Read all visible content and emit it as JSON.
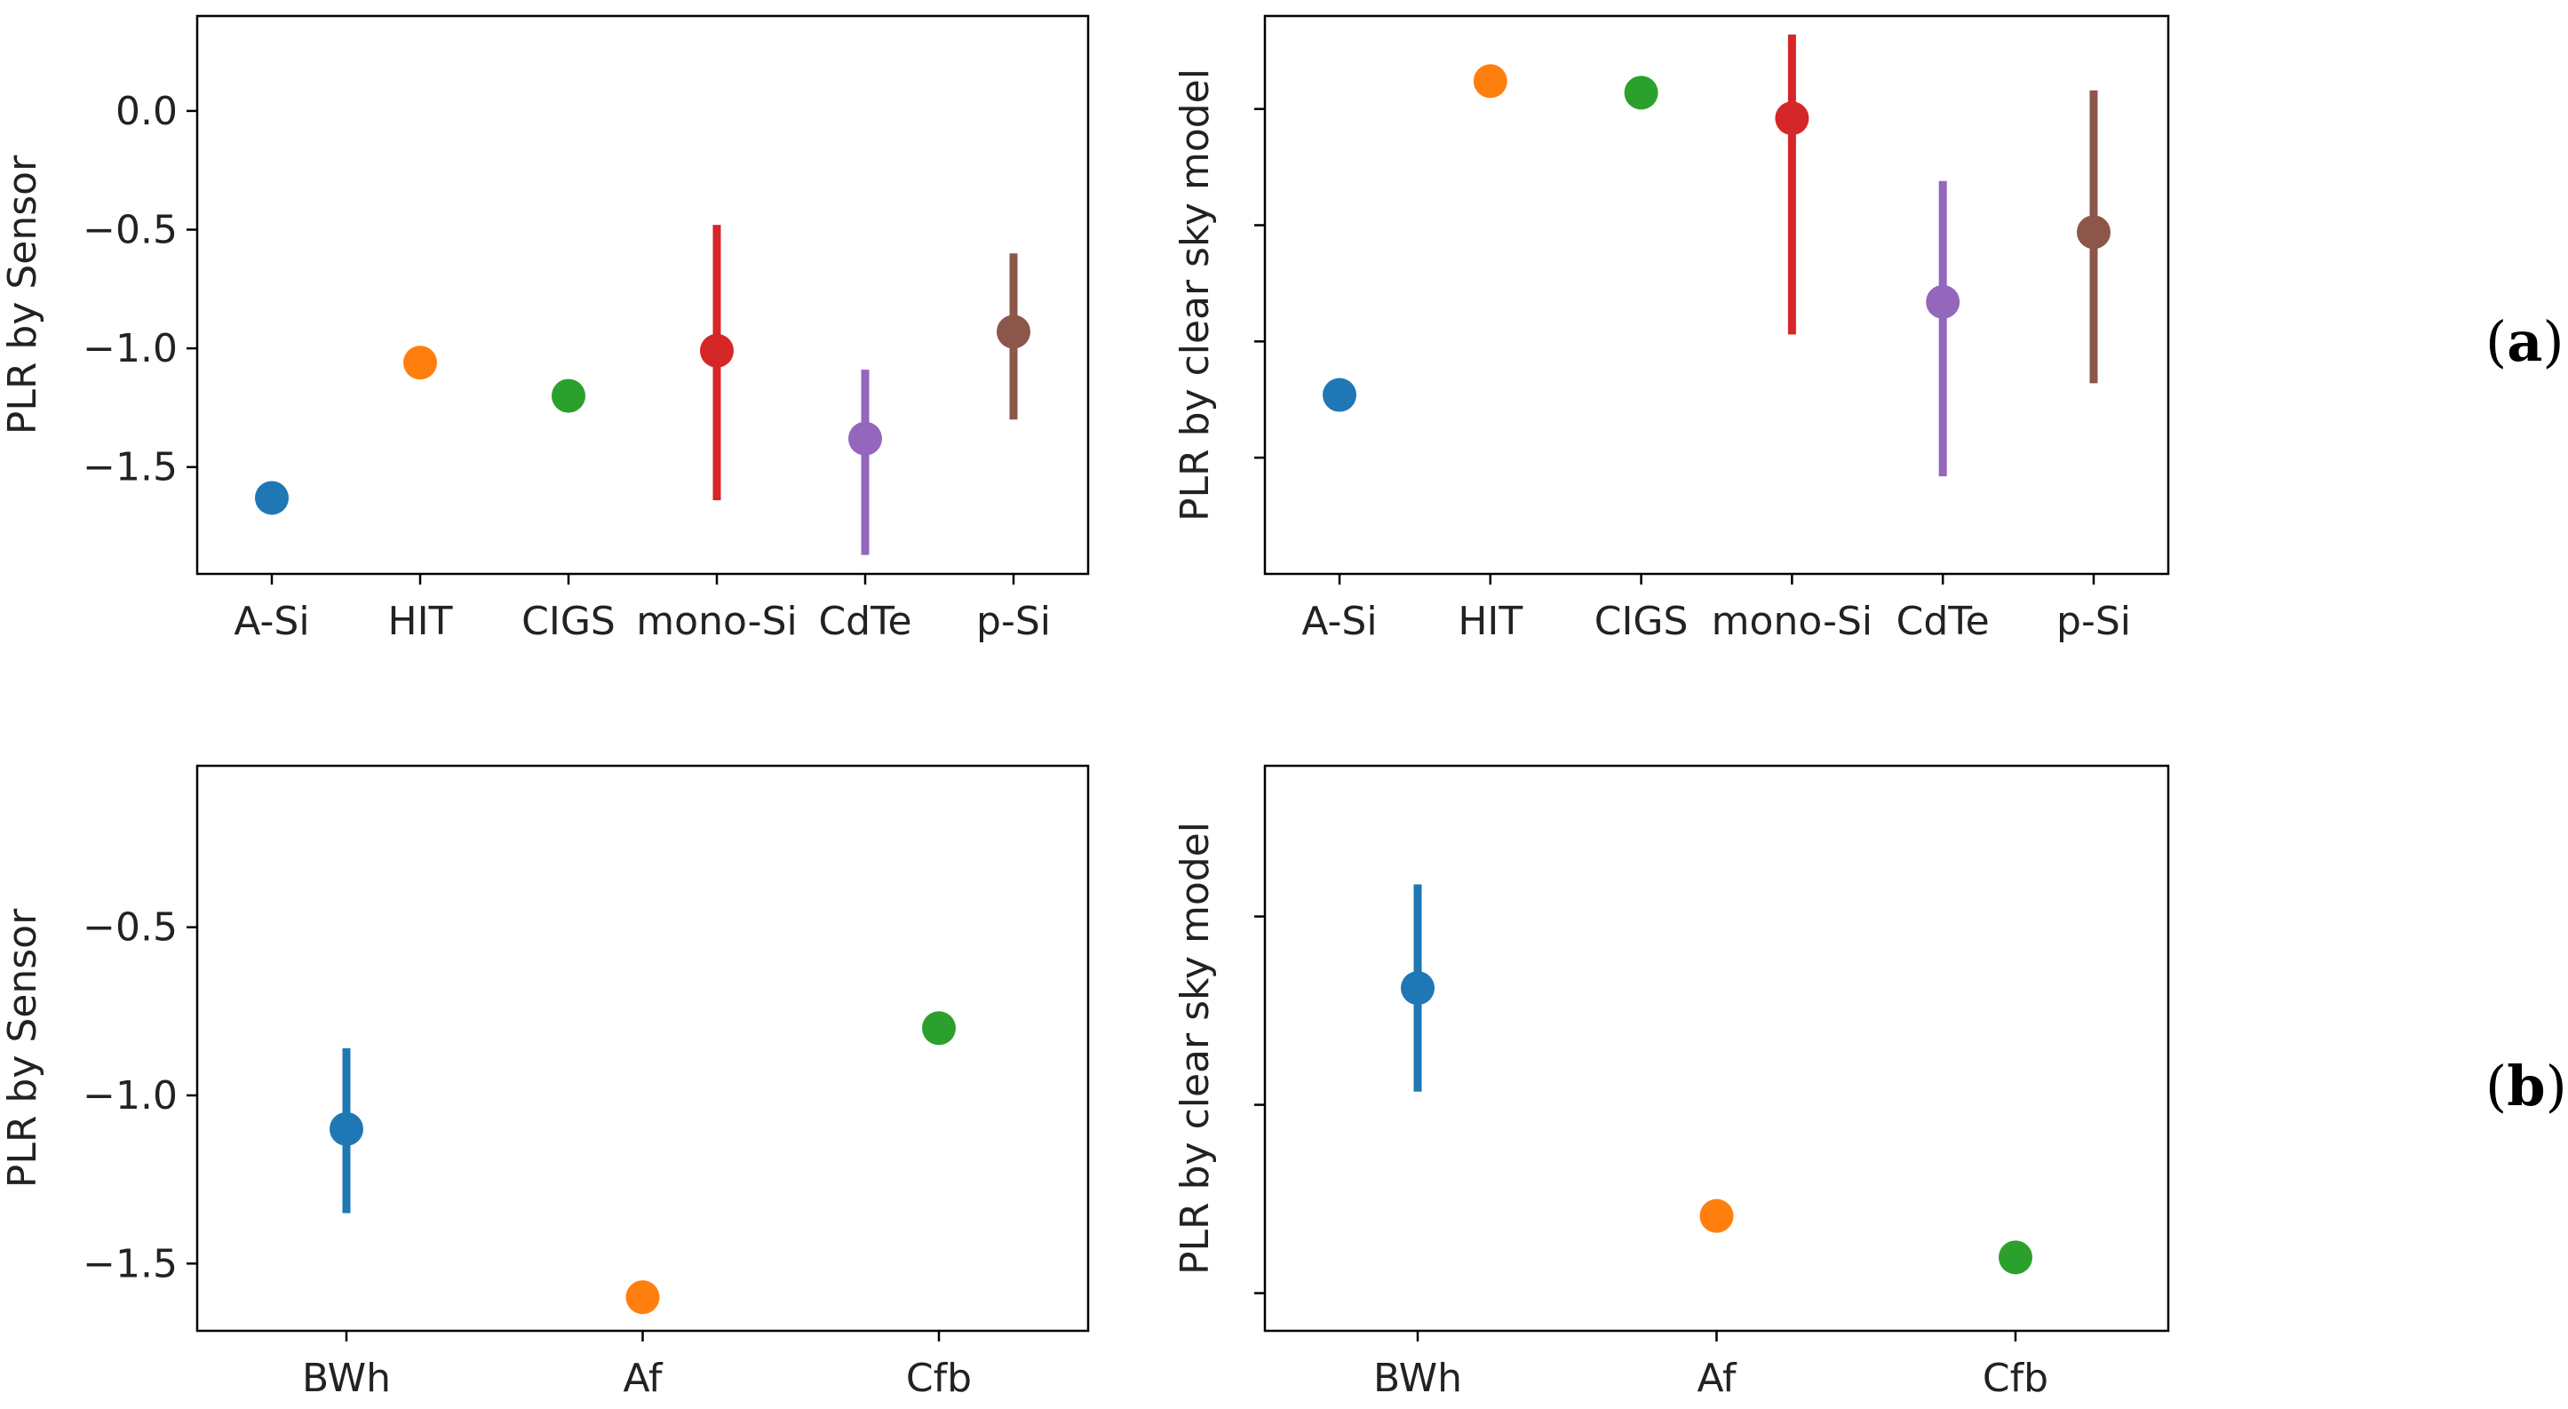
{
  "colors": [
    "#1f77b4",
    "#ff7f0e",
    "#2ca02c",
    "#d62728",
    "#9467bd",
    "#8c564b"
  ],
  "panel_labels": {
    "a": {
      "open": "(",
      "letter": "a",
      "close": ")"
    },
    "b": {
      "open": "(",
      "letter": "b",
      "close": ")"
    }
  },
  "chart_data": [
    {
      "id": "a-left",
      "type": "scatter",
      "title": "",
      "xlabel": "",
      "ylabel": "PLR by Sensor",
      "categories": [
        "A-Si",
        "HIT",
        "CIGS",
        "mono-Si",
        "CdTe",
        "p-Si"
      ],
      "values": [
        -1.63,
        -1.06,
        -1.2,
        -1.01,
        -1.38,
        -0.93
      ],
      "errors": [
        null,
        null,
        null,
        [
          -1.64,
          -0.48
        ],
        [
          -1.87,
          -1.09
        ],
        [
          -1.3,
          -0.6
        ]
      ],
      "ylim": [
        -1.95,
        0.4
      ],
      "yticks": [
        0.0,
        -0.5,
        -1.0,
        -1.5
      ],
      "ytick_labels": [
        "0.0",
        "−0.5",
        "−1.0",
        "−1.5"
      ],
      "grid": false
    },
    {
      "id": "a-right",
      "type": "scatter",
      "title": "",
      "xlabel": "",
      "ylabel": "PLR by clear sky model",
      "categories": [
        "A-Si",
        "HIT",
        "CIGS",
        "mono-Si",
        "CdTe",
        "p-Si"
      ],
      "values": [
        -1.23,
        0.12,
        0.07,
        -0.04,
        -0.83,
        -0.53
      ],
      "errors": [
        null,
        null,
        null,
        [
          -0.97,
          0.32
        ],
        [
          -1.58,
          -0.31
        ],
        [
          -1.18,
          0.08
        ]
      ],
      "ylim": [
        -2.0,
        0.4
      ],
      "yticks": [
        0.0,
        -0.5,
        -1.0,
        -1.5
      ],
      "ytick_labels": [
        "",
        "",
        "",
        ""
      ],
      "grid": false
    },
    {
      "id": "b-left",
      "type": "scatter",
      "title": "",
      "xlabel": "",
      "ylabel": "PLR by Sensor",
      "categories": [
        "BWh",
        "Af",
        "Cfb"
      ],
      "values": [
        -1.1,
        -1.6,
        -0.8
      ],
      "errors": [
        [
          -1.35,
          -0.86
        ],
        null,
        null
      ],
      "ylim": [
        -1.7,
        -0.02
      ],
      "yticks": [
        -0.5,
        -1.0,
        -1.5
      ],
      "ytick_labels": [
        "−0.5",
        "−1.0",
        "−1.5"
      ],
      "grid": false
    },
    {
      "id": "b-right",
      "type": "scatter",
      "title": "",
      "xlabel": "",
      "ylabel": "PLR by clear sky model",
      "categories": [
        "BWh",
        "Af",
        "Cfb"
      ],
      "values": [
        -0.38,
        -1.59,
        -1.81
      ],
      "errors": [
        [
          -0.93,
          0.17
        ],
        null,
        null
      ],
      "ylim": [
        -2.2,
        0.8
      ],
      "yticks": [
        0.0,
        -1.0,
        -2.0
      ],
      "ytick_labels": [
        "",
        "",
        ""
      ],
      "grid": false
    }
  ]
}
